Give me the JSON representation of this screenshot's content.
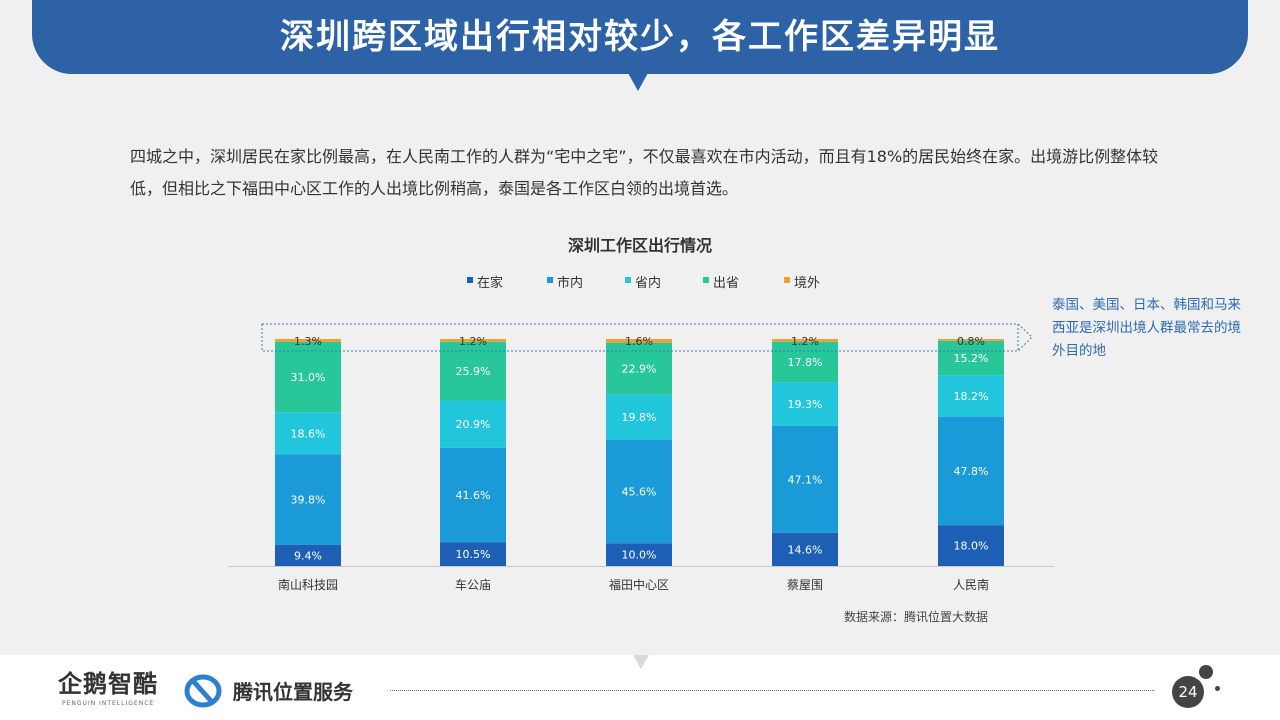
{
  "header": {
    "title": "深圳跨区域出行相对较少，各工作区差异明显"
  },
  "intro": {
    "text": "四城之中，深圳居民在家比例最高，在人民南工作的人群为“宅中之宅”，不仅最喜欢在市内活动，而且有18%的居民始终在家。出境游比例整体较低，但相比之下福田中心区工作的人出境比例稍高，泰国是各工作区白领的出境首选。"
  },
  "chart_data": {
    "type": "bar",
    "stacked": true,
    "percent": true,
    "title": "深圳工作区出行情况",
    "categories": [
      "南山科技园",
      "车公庙",
      "福田中心区",
      "蔡屋围",
      "人民南"
    ],
    "series": [
      {
        "name": "在家",
        "color": "#1d5fb4",
        "values": [
          9.4,
          10.5,
          10.0,
          14.6,
          18.0
        ]
      },
      {
        "name": "市内",
        "color": "#1a9ad6",
        "values": [
          39.8,
          41.6,
          45.6,
          47.1,
          47.8
        ]
      },
      {
        "name": "省内",
        "color": "#22c6dc",
        "values": [
          18.6,
          20.9,
          19.8,
          19.3,
          18.2
        ]
      },
      {
        "name": "出省",
        "color": "#27c79a",
        "values": [
          31.0,
          25.9,
          22.9,
          17.8,
          15.2
        ]
      },
      {
        "name": "境外",
        "color": "#f0a030",
        "values": [
          1.3,
          1.2,
          1.6,
          1.2,
          0.8
        ]
      }
    ],
    "legend_position": "top",
    "ylim": [
      0,
      100
    ],
    "grid": false
  },
  "callout": {
    "text": "泰国、美国、日本、韩国和马来西亚是深圳出境人群最常去的境外目的地"
  },
  "source": {
    "text": "数据来源：腾讯位置大数据"
  },
  "footer": {
    "logo1": "企鹅智酷",
    "logo1_sub": "PENGUIN INTELLIGENCE",
    "logo2": "腾讯位置服务",
    "page_number": "24"
  }
}
